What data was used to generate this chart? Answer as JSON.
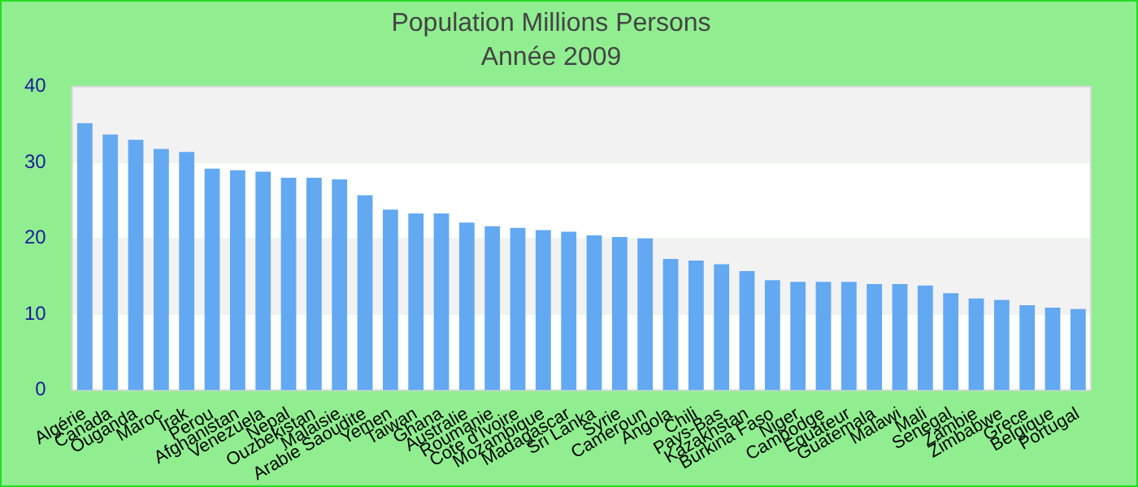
{
  "chart_data": {
    "type": "bar",
    "title": "Population Millions Persons",
    "subtitle": "Année 2009",
    "categories": [
      "Algérie",
      "Canada",
      "Ouganda",
      "Maroc",
      "Irak",
      "Perou",
      "Afghanistan",
      "Venezuela",
      "Nepal",
      "Ouzbekistan",
      "Malaisie",
      "Arabie Saoudite",
      "Yemen",
      "Taiwan",
      "Ghana",
      "Australie",
      "Roumanie",
      "Cote d'Ivoire",
      "Mozambique",
      "Madagascar",
      "Sri Lanka",
      "Syrie",
      "Cameroun",
      "Angola",
      "Chili",
      "Pays-Bas",
      "Kazakhstan",
      "Burkina Faso",
      "Niger",
      "Cambodge",
      "Equateur",
      "Guatemala",
      "Malawi",
      "Mali",
      "Senegal",
      "Zambie",
      "Zimbabwe",
      "Grece",
      "Belgique",
      "Portugal"
    ],
    "values": [
      35.2,
      33.7,
      33.0,
      31.8,
      31.4,
      29.2,
      29.0,
      28.8,
      28.0,
      28.0,
      27.8,
      25.7,
      23.8,
      23.3,
      23.3,
      22.1,
      21.6,
      21.4,
      21.1,
      20.9,
      20.4,
      20.2,
      20.0,
      17.3,
      17.1,
      16.6,
      15.7,
      14.5,
      14.3,
      14.3,
      14.3,
      14.0,
      14.0,
      13.8,
      12.8,
      12.1,
      11.9,
      11.2,
      10.9,
      10.7
    ],
    "color": "#62a9f2",
    "ylim": [
      0,
      40
    ],
    "yticks": [
      0,
      10,
      20,
      30,
      40
    ]
  }
}
